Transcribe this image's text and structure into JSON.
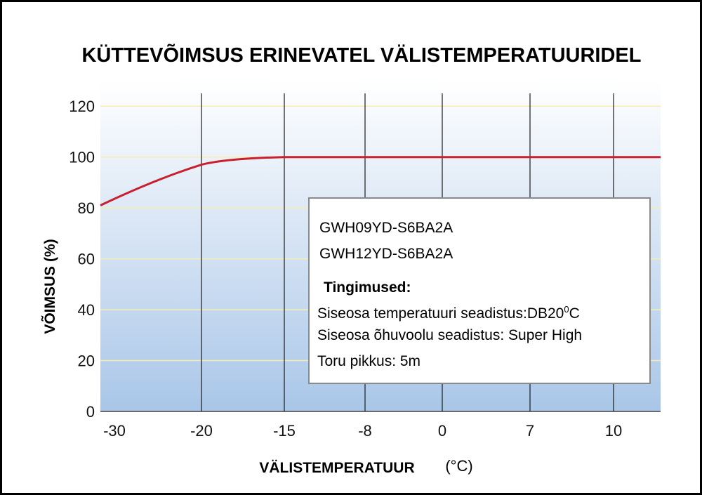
{
  "chart_data": {
    "type": "line",
    "title": "KÜTTEVÕIMSUS ERINEVATEL VÄLISTEMPERATUURIDEL",
    "xlabel": "VÄLISTEMPERATUUR",
    "xlabel_unit": "(°C)",
    "ylabel": "VÕIMSUS (%)",
    "x_categories": [
      "-30",
      "-20",
      "-15",
      "-8",
      "0",
      "7",
      "10"
    ],
    "y_ticks": [
      "0",
      "20",
      "40",
      "60",
      "80",
      "100",
      "120"
    ],
    "ylim": [
      0,
      130
    ],
    "grid": true,
    "series": [
      {
        "color": "#c8202e",
        "points": [
          {
            "x": "-30",
            "y": 81
          },
          {
            "x": "-20",
            "y": 97
          },
          {
            "x": "-15",
            "y": 100
          },
          {
            "x": "-8",
            "y": 100
          },
          {
            "x": "0",
            "y": 100
          },
          {
            "x": "7",
            "y": 100
          },
          {
            "x": "10",
            "y": 100
          }
        ]
      }
    ],
    "legend": {
      "placement": "center-right",
      "models": [
        "GWH09YD-S6BA2A",
        "GWH12YD-S6BA2A"
      ],
      "conditions_heading": "Tingimused:",
      "condition_1": "Siseosa temperatuuri seadistus:DB20",
      "condition_1_sup": "0",
      "condition_1_end": "C",
      "condition_2": "Siseosa õhuvoolu seadistus: Super High",
      "condition_3": "Toru pikkus: 5m"
    }
  },
  "colors": {
    "plot_gradient_top": "#ffffff",
    "plot_gradient_bottom": "#a9c6e8",
    "gridline_horizontal": "#f4efb0",
    "gridline_vertical": "#1a1a1a",
    "line": "#c8202e"
  }
}
